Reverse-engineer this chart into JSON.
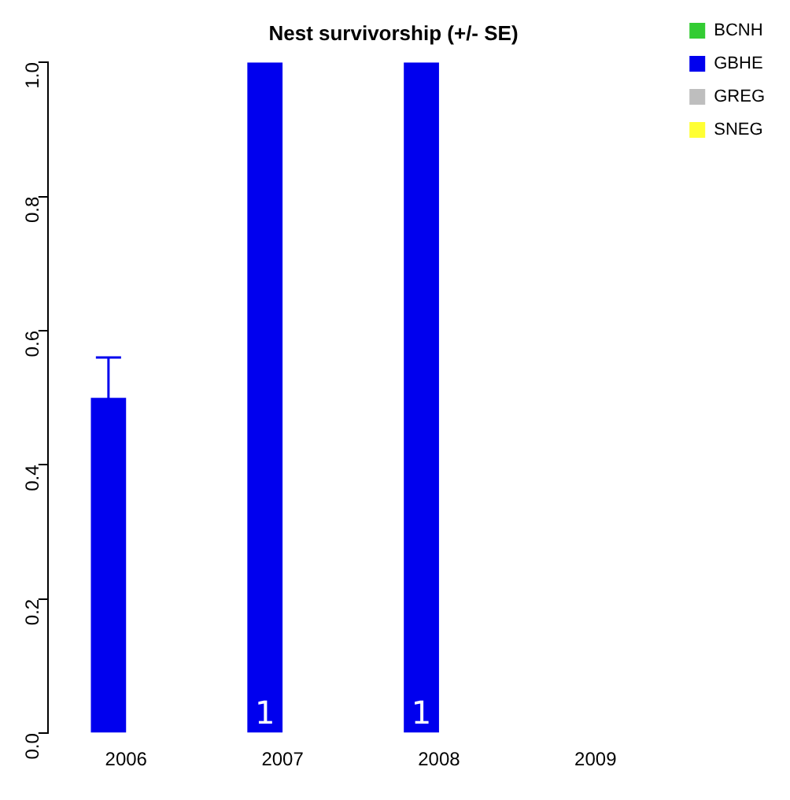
{
  "chart_data": {
    "type": "bar",
    "title": "Nest survivorship (+/- SE)",
    "categories": [
      "2006",
      "2007",
      "2008",
      "2009"
    ],
    "series": [
      {
        "name": "BCNH",
        "color": "#33cc33",
        "values": [
          null,
          null,
          null,
          null
        ]
      },
      {
        "name": "GBHE",
        "color": "#0000ee",
        "values": [
          0.5,
          1,
          1,
          null
        ],
        "errors": [
          0.06,
          null,
          null,
          null
        ],
        "value_labels": [
          null,
          "1",
          "1",
          null
        ]
      },
      {
        "name": "GREG",
        "color": "#bebebe",
        "values": [
          null,
          null,
          null,
          null
        ]
      },
      {
        "name": "SNEG",
        "color": "#ffff33",
        "values": [
          null,
          null,
          null,
          null
        ]
      }
    ],
    "ylim": [
      0,
      1
    ],
    "yticks": [
      {
        "value": 0,
        "label": "0.0"
      },
      {
        "value": 0.2,
        "label": "0.2"
      },
      {
        "value": 0.4,
        "label": "0.4"
      },
      {
        "value": 0.6,
        "label": "0.6"
      },
      {
        "value": 0.8,
        "label": "0.8"
      },
      {
        "value": 1,
        "label": "1.0"
      }
    ],
    "grid": false,
    "legend": "top right"
  }
}
